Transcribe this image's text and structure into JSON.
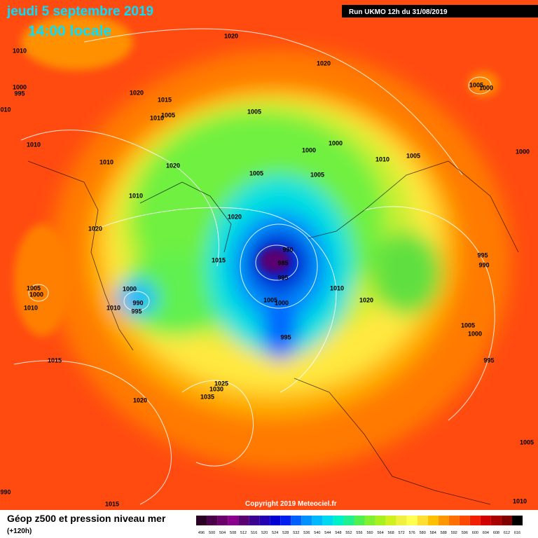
{
  "header": {
    "date": "jeudi 5 septembre 2019",
    "time": "14:00 locale",
    "run": "Run UKMO 12h du 31/08/2019"
  },
  "copyright": "Copyright 2019 Meteociel.fr",
  "legend": {
    "title": "Géop z500 et pression niveau mer",
    "lead": "(+120h)",
    "ticks": [
      496,
      500,
      504,
      508,
      512,
      516,
      520,
      524,
      528,
      532,
      536,
      540,
      544,
      548,
      552,
      556,
      560,
      564,
      568,
      572,
      576,
      580,
      584,
      588,
      592,
      596,
      600,
      604,
      608,
      612,
      616
    ],
    "colors": [
      "#2a0025",
      "#4a0048",
      "#6a006a",
      "#8a008c",
      "#5a0070",
      "#3a0090",
      "#2000b0",
      "#0000d0",
      "#0020f0",
      "#0060ff",
      "#0090ff",
      "#00b8ff",
      "#00d8f0",
      "#00f0c8",
      "#20f090",
      "#50f050",
      "#80f030",
      "#a8f020",
      "#d0f020",
      "#f0f040",
      "#ffff50",
      "#ffe030",
      "#ffc000",
      "#ff9800",
      "#ff7000",
      "#ff4800",
      "#f02000",
      "#d00000",
      "#a80000",
      "#800000",
      "#000000"
    ]
  },
  "isobar_labels": [
    "1020",
    "1020",
    "1010",
    "1000",
    "995",
    "010",
    "1020",
    "1015",
    "1010",
    "1005",
    "1005",
    "1005",
    "1000",
    "1010",
    "1010",
    "1020",
    "1000",
    "1000",
    "1010",
    "1005",
    "1000",
    "1005",
    "1005",
    "1010",
    "1020",
    "1020",
    "990",
    "985",
    "995",
    "995",
    "990",
    "1015",
    "1005",
    "1000",
    "1010",
    "1000",
    "990",
    "1010",
    "995",
    "1010",
    "1020",
    "1005",
    "1000",
    "995",
    "1005",
    "1000",
    "995",
    "1015",
    "1025",
    "1030",
    "1035",
    "1020",
    "1005",
    "990",
    "1015",
    "1010"
  ]
}
